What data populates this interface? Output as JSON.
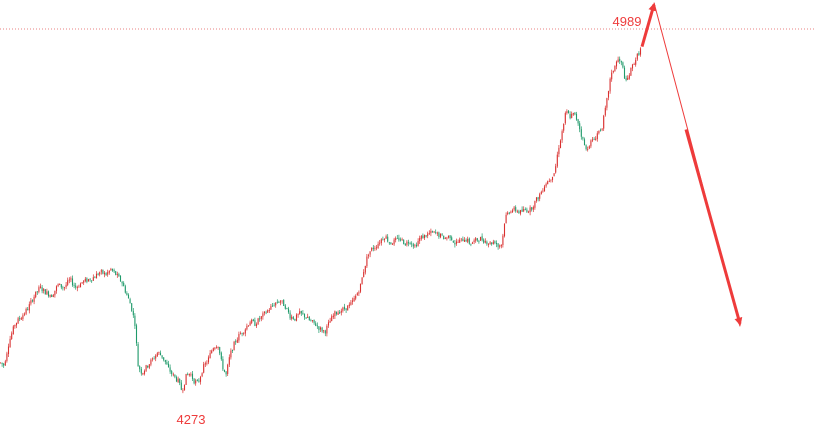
{
  "chart_data": {
    "type": "candlestick",
    "y_unit": "price",
    "ylim": [
      4215,
      5045
    ],
    "high_label": {
      "text": "4989",
      "value": 4989
    },
    "low_label": {
      "text": "4273",
      "value": 4273
    },
    "reference_line": {
      "value": 4989,
      "style": "dotted"
    },
    "colors": {
      "up": "#d9302f",
      "down": "#1f9a6a",
      "annotation": "#ee3b3b"
    },
    "trend_path": [
      [
        0,
        4345
      ],
      [
        4,
        4340
      ],
      [
        9,
        4385
      ],
      [
        15,
        4420
      ],
      [
        22,
        4435
      ],
      [
        28,
        4450
      ],
      [
        33,
        4470
      ],
      [
        40,
        4490
      ],
      [
        46,
        4480
      ],
      [
        52,
        4475
      ],
      [
        58,
        4495
      ],
      [
        64,
        4490
      ],
      [
        70,
        4505
      ],
      [
        76,
        4490
      ],
      [
        82,
        4500
      ],
      [
        88,
        4505
      ],
      [
        94,
        4510
      ],
      [
        100,
        4520
      ],
      [
        106,
        4515
      ],
      [
        111,
        4525
      ],
      [
        116,
        4515
      ],
      [
        122,
        4500
      ],
      [
        127,
        4475
      ],
      [
        131,
        4455
      ],
      [
        135,
        4420
      ],
      [
        138,
        4340
      ],
      [
        142,
        4325
      ],
      [
        147,
        4338
      ],
      [
        152,
        4350
      ],
      [
        158,
        4365
      ],
      [
        163,
        4355
      ],
      [
        168,
        4335
      ],
      [
        173,
        4320
      ],
      [
        178,
        4310
      ],
      [
        182,
        4290
      ],
      [
        186,
        4318
      ],
      [
        190,
        4325
      ],
      [
        194,
        4310
      ],
      [
        198,
        4305
      ],
      [
        203,
        4335
      ],
      [
        208,
        4350
      ],
      [
        213,
        4375
      ],
      [
        218,
        4380
      ],
      [
        222,
        4340
      ],
      [
        226,
        4320
      ],
      [
        230,
        4360
      ],
      [
        235,
        4385
      ],
      [
        240,
        4400
      ],
      [
        245,
        4410
      ],
      [
        250,
        4425
      ],
      [
        255,
        4420
      ],
      [
        260,
        4430
      ],
      [
        265,
        4440
      ],
      [
        270,
        4450
      ],
      [
        275,
        4460
      ],
      [
        280,
        4465
      ],
      [
        285,
        4455
      ],
      [
        290,
        4435
      ],
      [
        295,
        4430
      ],
      [
        300,
        4440
      ],
      [
        305,
        4435
      ],
      [
        310,
        4425
      ],
      [
        315,
        4420
      ],
      [
        320,
        4410
      ],
      [
        325,
        4405
      ],
      [
        330,
        4425
      ],
      [
        335,
        4440
      ],
      [
        340,
        4445
      ],
      [
        345,
        4450
      ],
      [
        350,
        4455
      ],
      [
        355,
        4470
      ],
      [
        360,
        4490
      ],
      [
        364,
        4525
      ],
      [
        368,
        4555
      ],
      [
        372,
        4565
      ],
      [
        376,
        4570
      ],
      [
        380,
        4580
      ],
      [
        385,
        4590
      ],
      [
        390,
        4575
      ],
      [
        395,
        4580
      ],
      [
        400,
        4585
      ],
      [
        405,
        4575
      ],
      [
        410,
        4580
      ],
      [
        415,
        4570
      ],
      [
        420,
        4585
      ],
      [
        425,
        4590
      ],
      [
        430,
        4595
      ],
      [
        435,
        4595
      ],
      [
        440,
        4590
      ],
      [
        445,
        4585
      ],
      [
        450,
        4590
      ],
      [
        455,
        4575
      ],
      [
        460,
        4580
      ],
      [
        465,
        4585
      ],
      [
        470,
        4575
      ],
      [
        475,
        4580
      ],
      [
        480,
        4585
      ],
      [
        485,
        4580
      ],
      [
        490,
        4575
      ],
      [
        495,
        4580
      ],
      [
        498,
        4570
      ],
      [
        502,
        4575
      ],
      [
        505,
        4625
      ],
      [
        510,
        4640
      ],
      [
        515,
        4640
      ],
      [
        520,
        4635
      ],
      [
        525,
        4640
      ],
      [
        530,
        4640
      ],
      [
        535,
        4655
      ],
      [
        540,
        4670
      ],
      [
        545,
        4690
      ],
      [
        550,
        4700
      ],
      [
        555,
        4715
      ],
      [
        558,
        4755
      ],
      [
        562,
        4790
      ],
      [
        566,
        4830
      ],
      [
        570,
        4820
      ],
      [
        574,
        4825
      ],
      [
        578,
        4810
      ],
      [
        582,
        4780
      ],
      [
        586,
        4755
      ],
      [
        590,
        4770
      ],
      [
        594,
        4775
      ],
      [
        598,
        4790
      ],
      [
        602,
        4800
      ],
      [
        606,
        4840
      ],
      [
        610,
        4890
      ],
      [
        614,
        4915
      ],
      [
        618,
        4930
      ],
      [
        622,
        4920
      ],
      [
        626,
        4885
      ],
      [
        630,
        4905
      ],
      [
        634,
        4925
      ],
      [
        638,
        4940
      ],
      [
        642,
        4955
      ]
    ]
  }
}
